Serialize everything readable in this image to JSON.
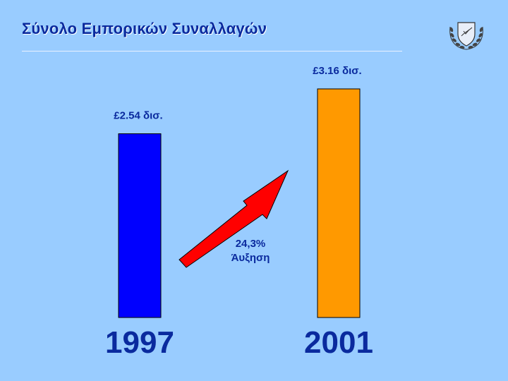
{
  "title": "Σύνολο Εμπορικών Συναλλαγών",
  "colors": {
    "background": "#99ccff",
    "title": "#0a2a9e",
    "bar_1997": "#0000ff",
    "bar_2001": "#ff9900",
    "arrow": "#ff0000",
    "year_label": "#0a2a9e"
  },
  "icons": {
    "emblem": "cyprus-coat-of-arms-icon"
  },
  "chart_data": {
    "type": "bar",
    "categories": [
      "1997",
      "2001"
    ],
    "values": [
      2.54,
      3.16
    ],
    "value_labels": [
      "£2.54 δισ.",
      "£3.16 δισ."
    ],
    "bar_colors": [
      "#0000ff",
      "#ff9900"
    ],
    "annotation": {
      "value": "24,3%",
      "text": "Άυξηση"
    },
    "grid": false,
    "legend": "none"
  }
}
